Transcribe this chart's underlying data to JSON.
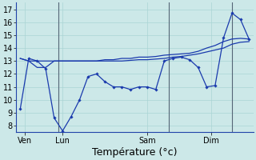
{
  "title": "",
  "xlabel": "Température (°c)",
  "ylabel": "",
  "bg_color": "#cce8e8",
  "grid_color": "#aad4d4",
  "line_color": "#1a3aad",
  "vline_color": "#556677",
  "ylim": [
    7.5,
    17.5
  ],
  "yticks": [
    8,
    9,
    10,
    11,
    12,
    13,
    14,
    15,
    16,
    17
  ],
  "day_labels": [
    "Ven",
    "Lun",
    "Sam",
    "Dim"
  ],
  "series1_x": [
    0,
    1,
    2,
    3,
    4,
    5,
    6,
    7,
    8,
    9,
    10,
    11,
    12,
    13,
    14,
    15,
    16,
    17,
    18,
    19,
    20,
    21,
    22,
    23,
    24,
    25,
    26,
    27
  ],
  "series1_y": [
    9.3,
    13.2,
    13.0,
    12.4,
    8.6,
    7.6,
    8.7,
    10.0,
    11.8,
    12.0,
    11.4,
    11.0,
    11.0,
    10.8,
    11.0,
    11.0,
    10.8,
    13.0,
    13.2,
    13.3,
    13.1,
    12.5,
    11.0,
    11.1,
    14.8,
    16.7,
    16.2,
    14.7
  ],
  "series2_x": [
    0,
    1,
    2,
    3,
    4,
    5,
    6,
    7,
    8,
    9,
    10,
    11,
    12,
    13,
    14,
    15,
    16,
    17,
    18,
    19,
    20,
    21,
    22,
    23,
    24,
    25,
    26,
    27
  ],
  "series2_y": [
    13.2,
    13.0,
    13.0,
    13.0,
    13.0,
    13.0,
    13.0,
    13.0,
    13.0,
    13.0,
    13.0,
    13.0,
    13.0,
    13.05,
    13.1,
    13.1,
    13.15,
    13.2,
    13.3,
    13.35,
    13.45,
    13.55,
    13.7,
    13.85,
    14.0,
    14.3,
    14.45,
    14.5
  ],
  "series3_x": [
    0,
    1,
    2,
    3,
    4,
    5,
    6,
    7,
    8,
    9,
    10,
    11,
    12,
    13,
    14,
    15,
    16,
    17,
    18,
    19,
    20,
    21,
    22,
    23,
    24,
    25,
    26,
    27
  ],
  "series3_y": [
    13.2,
    13.0,
    12.5,
    12.5,
    13.0,
    13.0,
    13.0,
    13.0,
    13.0,
    13.0,
    13.1,
    13.1,
    13.2,
    13.2,
    13.3,
    13.3,
    13.35,
    13.45,
    13.5,
    13.55,
    13.6,
    13.75,
    14.0,
    14.2,
    14.5,
    14.7,
    14.75,
    14.7
  ],
  "vline_x": [
    4.5,
    17.5,
    25.0
  ],
  "tick_label_fontsize": 7,
  "xlabel_fontsize": 9
}
